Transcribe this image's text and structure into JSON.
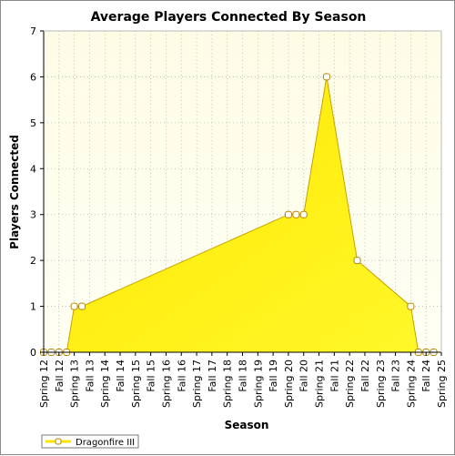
{
  "chart_data": {
    "type": "area",
    "title": "Average Players Connected By Season",
    "xlabel": "Season",
    "ylabel": "Players Connected",
    "ylim": [
      0,
      7
    ],
    "yticks": [
      "0",
      "1",
      "2",
      "3",
      "4",
      "5",
      "6",
      "7"
    ],
    "grid": true,
    "legend_position": "bottom-left",
    "colors": {
      "plot_bg_top": "#fdfde6",
      "plot_bg_bottom": "#fffff4",
      "area_top": "#ffe600",
      "area_bottom": "#fff82a",
      "line": "#c8a000",
      "marker_fill": "#ffffff",
      "marker_stroke": "#b58500"
    },
    "categories": [
      "Spring 12",
      "Fall 12",
      "Spring 13",
      "Fall 13",
      "Spring 14",
      "Fall 14",
      "Spring 15",
      "Fall 15",
      "Spring 16",
      "Fall 16",
      "Spring 17",
      "Fall 17",
      "Spring 18",
      "Fall 18",
      "Spring 19",
      "Fall 19",
      "Spring 20",
      "Fall 20",
      "Spring 21",
      "Fall 21",
      "Spring 22",
      "Fall 22",
      "Spring 23",
      "Fall 23",
      "Spring 24",
      "Fall 24",
      "Spring 25"
    ],
    "series": [
      {
        "name": "Dragonfire III",
        "points": [
          {
            "x": 0,
            "y": 0
          },
          {
            "x": 0.5,
            "y": 0
          },
          {
            "x": 1,
            "y": 0
          },
          {
            "x": 1.5,
            "y": 0
          },
          {
            "x": 2,
            "y": 1
          },
          {
            "x": 2.5,
            "y": 1
          },
          {
            "x": 16,
            "y": 3
          },
          {
            "x": 16.5,
            "y": 3
          },
          {
            "x": 17,
            "y": 3
          },
          {
            "x": 18.5,
            "y": 6
          },
          {
            "x": 20.5,
            "y": 2
          },
          {
            "x": 24,
            "y": 1
          },
          {
            "x": 24.5,
            "y": 0
          },
          {
            "x": 25,
            "y": 0
          },
          {
            "x": 25.5,
            "y": 0
          }
        ]
      }
    ]
  }
}
